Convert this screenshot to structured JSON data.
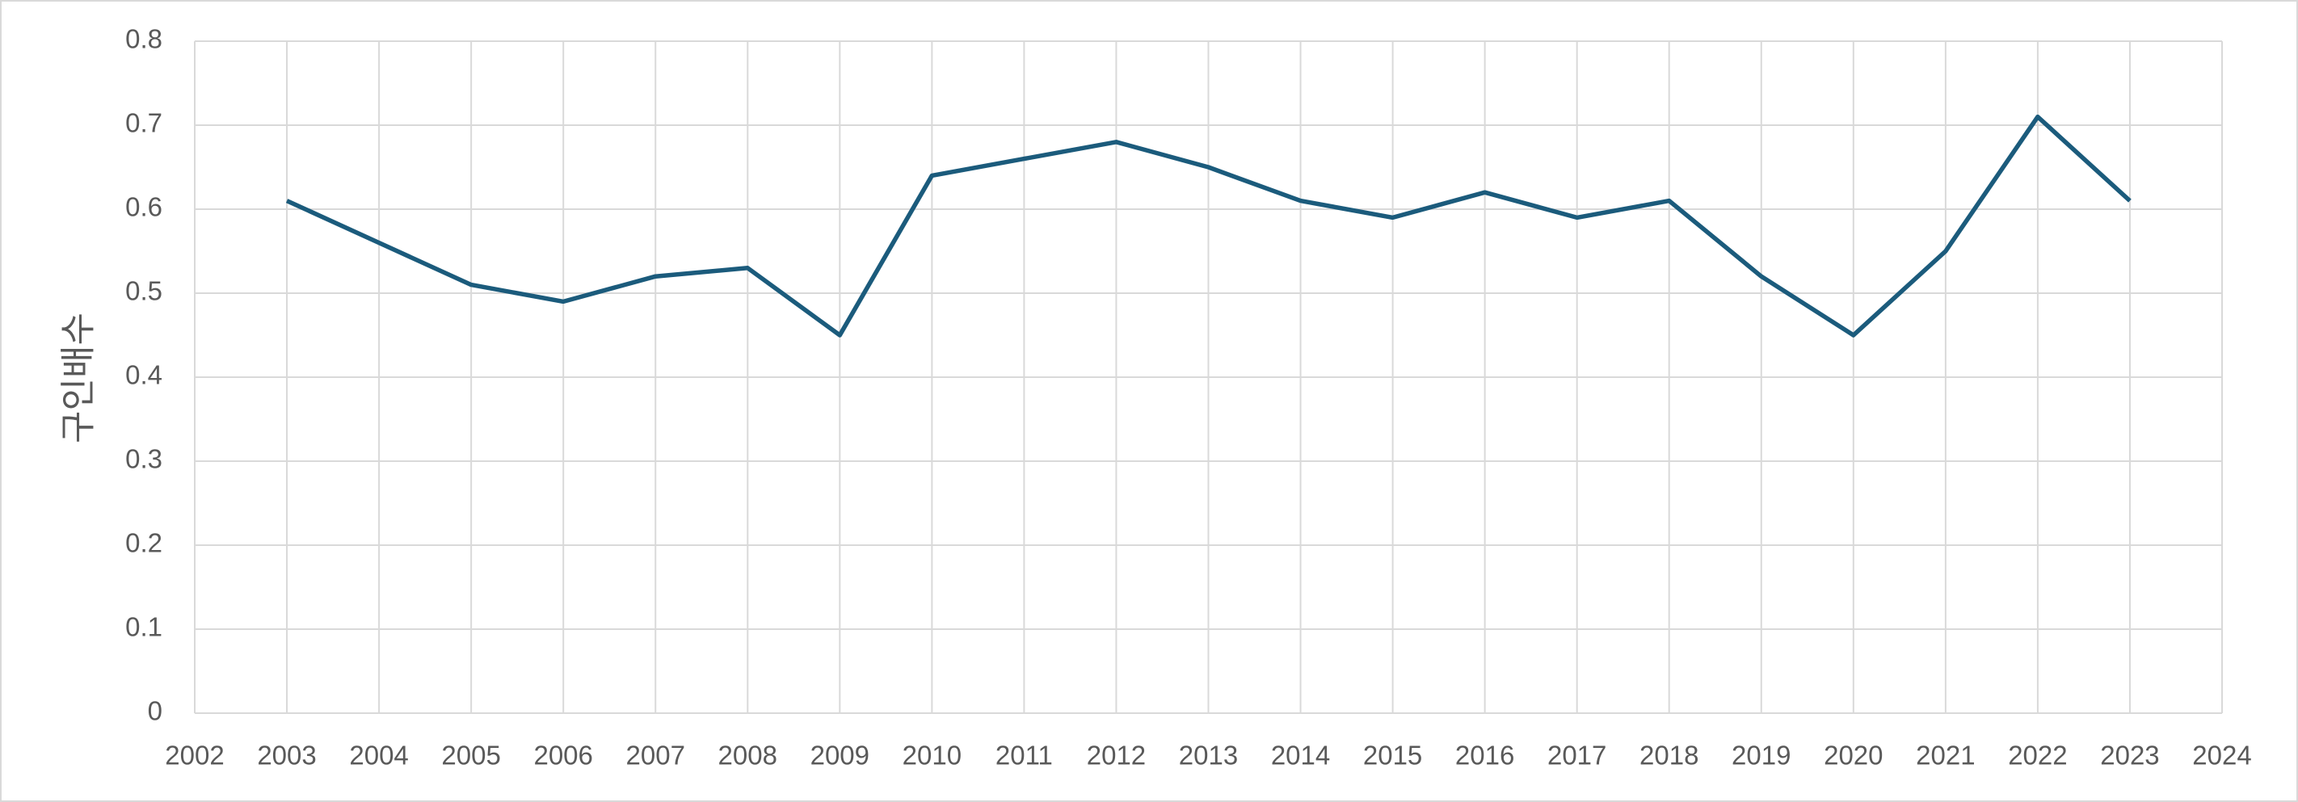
{
  "chart_data": {
    "type": "line",
    "y_label": "구인배수",
    "x": [
      2003,
      2004,
      2005,
      2006,
      2007,
      2008,
      2009,
      2010,
      2011,
      2012,
      2013,
      2014,
      2015,
      2016,
      2017,
      2018,
      2019,
      2020,
      2021,
      2022,
      2023
    ],
    "series": [
      {
        "color": "#1b5b7c",
        "values": [
          0.61,
          0.56,
          0.51,
          0.49,
          0.52,
          0.53,
          0.45,
          0.64,
          0.66,
          0.68,
          0.65,
          0.61,
          0.59,
          0.62,
          0.59,
          0.61,
          0.52,
          0.45,
          0.55,
          0.71,
          0.61
        ]
      }
    ],
    "xlim": [
      2002,
      2024
    ],
    "xticks": [
      2002,
      2003,
      2004,
      2005,
      2006,
      2007,
      2008,
      2009,
      2010,
      2011,
      2012,
      2013,
      2014,
      2015,
      2016,
      2017,
      2018,
      2019,
      2020,
      2021,
      2022,
      2023,
      2024
    ],
    "ylim": [
      0,
      0.8
    ],
    "yticks": [
      0,
      0.1,
      0.2,
      0.3,
      0.4,
      0.5,
      0.6,
      0.7,
      0.8
    ],
    "grid": true
  }
}
